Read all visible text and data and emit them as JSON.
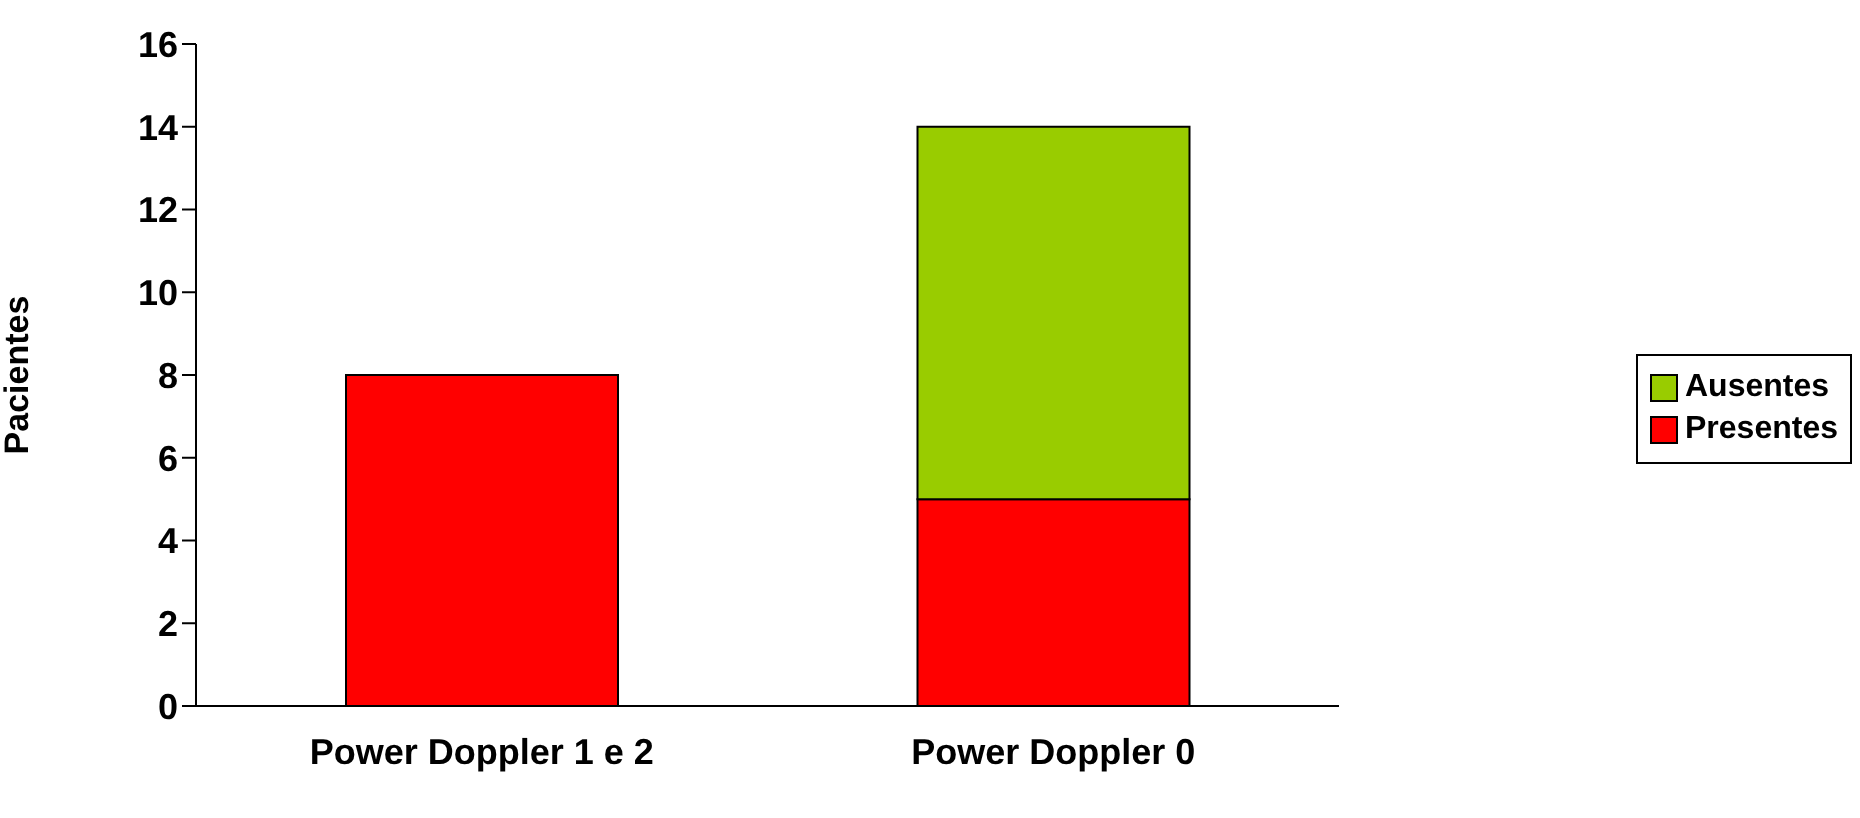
{
  "chart_data": {
    "type": "bar",
    "ylabel": "Pacientes",
    "categories": [
      "Power Doppler 1 e 2",
      "Power Doppler 0"
    ],
    "series": [
      {
        "name": "Presentes",
        "color": "#ff0000",
        "values": [
          8,
          5
        ]
      },
      {
        "name": "Ausentes",
        "color": "#99cc00",
        "values": [
          null,
          9
        ]
      }
    ],
    "stacked": true,
    "ylim": [
      0,
      16
    ],
    "yticks": [
      0,
      2,
      4,
      6,
      8,
      10,
      12,
      14,
      16
    ],
    "grid": false,
    "legend": "right"
  }
}
